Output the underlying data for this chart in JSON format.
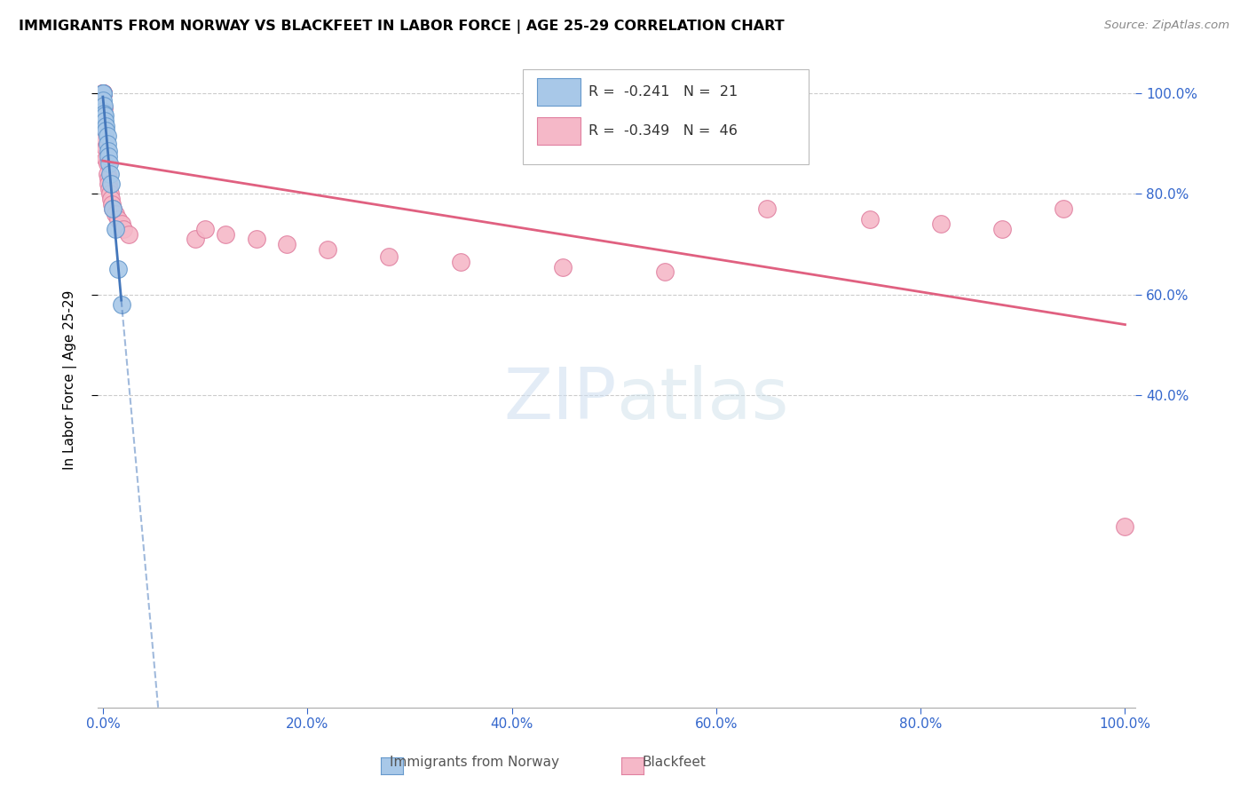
{
  "title": "IMMIGRANTS FROM NORWAY VS BLACKFEET IN LABOR FORCE | AGE 25-29 CORRELATION CHART",
  "source": "Source: ZipAtlas.com",
  "ylabel": "In Labor Force | Age 25-29",
  "norway_color": "#a8c8e8",
  "norway_edge": "#6699cc",
  "blackfeet_color": "#f5b8c8",
  "blackfeet_edge": "#e080a0",
  "norway_line_color": "#4477bb",
  "blackfeet_line_color": "#e06080",
  "watermark_zip": "ZIP",
  "watermark_atlas": "atlas",
  "background_color": "#ffffff",
  "grid_color": "#cccccc",
  "norway_x": [
    0.0,
    0.0,
    0.0,
    0.0,
    0.001,
    0.001,
    0.002,
    0.002,
    0.003,
    0.003,
    0.004,
    0.004,
    0.005,
    0.005,
    0.006,
    0.007,
    0.008,
    0.01,
    0.012,
    0.015,
    0.018
  ],
  "norway_y": [
    1.0,
    1.0,
    0.985,
    0.965,
    0.975,
    0.96,
    0.955,
    0.945,
    0.935,
    0.925,
    0.915,
    0.9,
    0.885,
    0.875,
    0.86,
    0.84,
    0.82,
    0.77,
    0.73,
    0.65,
    0.58
  ],
  "blackfeet_x": [
    0.0,
    0.0,
    0.0,
    0.0,
    0.0,
    0.0,
    0.0,
    0.0,
    0.0,
    0.0,
    0.001,
    0.001,
    0.002,
    0.002,
    0.003,
    0.003,
    0.004,
    0.004,
    0.005,
    0.005,
    0.006,
    0.007,
    0.008,
    0.009,
    0.01,
    0.012,
    0.015,
    0.018,
    0.02,
    0.025,
    0.09,
    0.1,
    0.12,
    0.15,
    0.18,
    0.22,
    0.28,
    0.35,
    0.45,
    0.55,
    0.65,
    0.75,
    0.82,
    0.88,
    0.94,
    1.0
  ],
  "blackfeet_y": [
    1.0,
    1.0,
    1.0,
    1.0,
    1.0,
    1.0,
    1.0,
    1.0,
    1.0,
    1.0,
    0.97,
    0.95,
    0.93,
    0.91,
    0.89,
    0.87,
    0.86,
    0.84,
    0.83,
    0.82,
    0.81,
    0.8,
    0.79,
    0.78,
    0.77,
    0.76,
    0.75,
    0.74,
    0.73,
    0.72,
    0.71,
    0.73,
    0.72,
    0.71,
    0.7,
    0.69,
    0.675,
    0.665,
    0.655,
    0.645,
    0.77,
    0.75,
    0.74,
    0.73,
    0.77,
    0.14
  ],
  "xlim": [
    -0.005,
    1.01
  ],
  "ylim": [
    -0.22,
    1.08
  ],
  "xticks": [
    0.0,
    0.2,
    0.4,
    0.6,
    0.8,
    1.0
  ],
  "xticklabels": [
    "0.0%",
    "20.0%",
    "40.0%",
    "60.0%",
    "80.0%",
    "100.0%"
  ],
  "yticks": [
    0.4,
    0.6,
    0.8,
    1.0
  ],
  "yticklabels_right": [
    "40.0%",
    "60.0%",
    "80.0%",
    "100.0%"
  ],
  "tick_color": "#3366cc",
  "legend_R1": "-0.241",
  "legend_N1": "21",
  "legend_R2": "-0.349",
  "legend_N2": "46"
}
